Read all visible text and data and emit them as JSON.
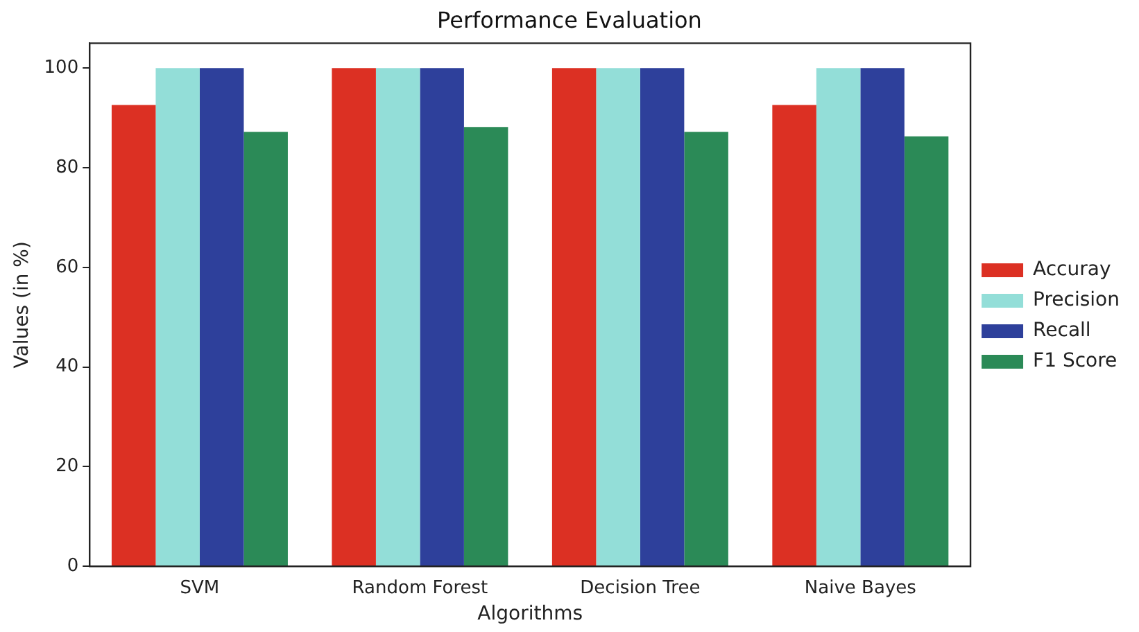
{
  "chart_data": {
    "type": "bar",
    "title": "Performance Evaluation",
    "xlabel": "Algorithms",
    "ylabel": "Values (in %)",
    "categories": [
      "SVM",
      "Random Forest",
      "Decision Tree",
      "Naive Bayes"
    ],
    "series": [
      {
        "name": "Accuray",
        "color": "#dc3023",
        "values": [
          92.6,
          100,
          100,
          92.6
        ]
      },
      {
        "name": "Precision",
        "color": "#93ded8",
        "values": [
          100,
          100,
          100,
          100
        ]
      },
      {
        "name": "Recall",
        "color": "#2e409b",
        "values": [
          100,
          100,
          100,
          100
        ]
      },
      {
        "name": "F1 Score",
        "color": "#2b8a57",
        "values": [
          87.2,
          88.2,
          87.2,
          86.3
        ]
      }
    ],
    "ylim": [
      0,
      105
    ],
    "yticks": [
      0,
      20,
      40,
      60,
      80,
      100
    ],
    "grid": false,
    "legend": "right"
  }
}
